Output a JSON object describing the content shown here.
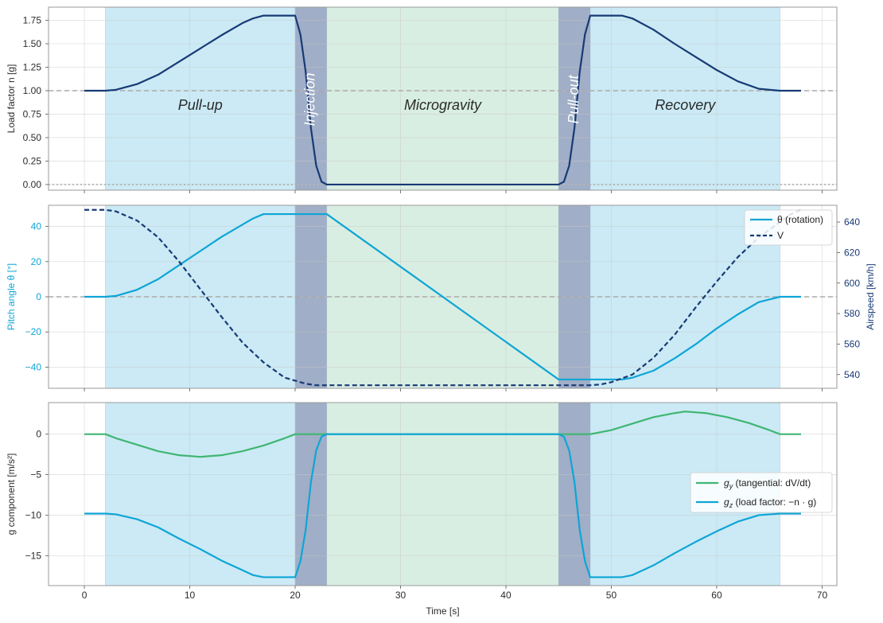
{
  "chart_data": [
    {
      "type": "line",
      "panel": "load-factor",
      "ylabel": "Load factor n [g]",
      "ylim": [
        -0.06,
        1.89
      ],
      "xlim": [
        -3.4,
        71.4
      ],
      "grid": true,
      "yticks": [
        0.0,
        0.25,
        0.5,
        0.75,
        1.0,
        1.25,
        1.5,
        1.75
      ],
      "ytick_labels": [
        "0.00",
        "0.25",
        "0.50",
        "0.75",
        "1.00",
        "1.25",
        "1.50",
        "1.75"
      ],
      "phases": [
        {
          "name": "Pull-up",
          "start": 2,
          "end": 20,
          "color": "#cbeaf5",
          "label_rotated": false
        },
        {
          "name": "Injection",
          "start": 20,
          "end": 23,
          "color": "#a0aec7",
          "label_rotated": true
        },
        {
          "name": "Microgravity",
          "start": 23,
          "end": 45,
          "color": "#d9eee2",
          "label_rotated": false
        },
        {
          "name": "Pull-out",
          "start": 45,
          "end": 48,
          "color": "#a0aec7",
          "label_rotated": true
        },
        {
          "name": "Recovery",
          "start": 48,
          "end": 66,
          "color": "#cbeaf5",
          "label_rotated": false
        }
      ],
      "reference_lines": [
        {
          "y": 1.0,
          "style": "dashed",
          "color": "#aaaaaa"
        },
        {
          "y": 0.0,
          "style": "dotted",
          "color": "#aaaaaa"
        }
      ],
      "series": [
        {
          "color": "#173a75",
          "axis": "left",
          "style": "solid",
          "points": [
            [
              0,
              1.0
            ],
            [
              2,
              1.0
            ],
            [
              3,
              1.01
            ],
            [
              5,
              1.07
            ],
            [
              7,
              1.17
            ],
            [
              9,
              1.31
            ],
            [
              11,
              1.45
            ],
            [
              13,
              1.59
            ],
            [
              15,
              1.72
            ],
            [
              16,
              1.77
            ],
            [
              17,
              1.8
            ],
            [
              20,
              1.8
            ],
            [
              20.5,
              1.6
            ],
            [
              21,
              1.2
            ],
            [
              21.5,
              0.6
            ],
            [
              22,
              0.2
            ],
            [
              22.5,
              0.03
            ],
            [
              23,
              0.0
            ],
            [
              45,
              0.0
            ],
            [
              45.5,
              0.03
            ],
            [
              46,
              0.2
            ],
            [
              46.5,
              0.6
            ],
            [
              47,
              1.2
            ],
            [
              47.5,
              1.6
            ],
            [
              48,
              1.8
            ],
            [
              51,
              1.8
            ],
            [
              52,
              1.77
            ],
            [
              54,
              1.65
            ],
            [
              56,
              1.5
            ],
            [
              58,
              1.36
            ],
            [
              60,
              1.22
            ],
            [
              62,
              1.1
            ],
            [
              64,
              1.02
            ],
            [
              66,
              1.0
            ],
            [
              68,
              1.0
            ]
          ]
        }
      ]
    },
    {
      "type": "line",
      "panel": "pitch-airspeed",
      "ylabel": "Pitch angle θ [°]",
      "ylabel_right": "Airspeed [km/h]",
      "ylim": [
        -52,
        52
      ],
      "ylim_right": [
        531,
        651
      ],
      "xlim": [
        -3.4,
        71.4
      ],
      "grid": true,
      "yticks": [
        -40,
        -20,
        0,
        20,
        40
      ],
      "ytick_labels": [
        "−40",
        "−20",
        "0",
        "20",
        "40"
      ],
      "yticks_right": [
        540,
        560,
        580,
        600,
        620,
        640
      ],
      "ytick_labels_right": [
        "540",
        "560",
        "580",
        "600",
        "620",
        "640"
      ],
      "reference_lines": [
        {
          "y": 0,
          "style": "dashed",
          "color": "#aaaaaa"
        }
      ],
      "legend": {
        "position": "top-right",
        "entries": [
          {
            "text": "θ (rotation)",
            "color": "#0ea5d6",
            "style": "solid"
          },
          {
            "text": "V",
            "color": "#173a75",
            "style": "dashed"
          }
        ]
      },
      "series": [
        {
          "name": "θ (rotation)",
          "color": "#0ea5d6",
          "axis": "left",
          "style": "solid",
          "points": [
            [
              0,
              0
            ],
            [
              2,
              0
            ],
            [
              3,
              0.5
            ],
            [
              5,
              4
            ],
            [
              7,
              10
            ],
            [
              9,
              18
            ],
            [
              11,
              26
            ],
            [
              13,
              34
            ],
            [
              15,
              41
            ],
            [
              16,
              44.5
            ],
            [
              17,
              47
            ],
            [
              23,
              47
            ],
            [
              45,
              -47
            ],
            [
              51,
              -47
            ],
            [
              52,
              -46
            ],
            [
              54,
              -42
            ],
            [
              56,
              -35
            ],
            [
              58,
              -27
            ],
            [
              60,
              -18
            ],
            [
              62,
              -10
            ],
            [
              64,
              -3
            ],
            [
              66,
              0
            ],
            [
              68,
              0
            ]
          ]
        },
        {
          "name": "V",
          "color": "#173a75",
          "axis": "right",
          "style": "dashed",
          "points": [
            [
              0,
              648
            ],
            [
              2,
              648
            ],
            [
              3,
              647
            ],
            [
              5,
              641
            ],
            [
              7,
              630
            ],
            [
              9,
              614
            ],
            [
              11,
              596
            ],
            [
              13,
              578
            ],
            [
              15,
              561
            ],
            [
              17,
              548
            ],
            [
              19,
              538
            ],
            [
              20,
              536
            ],
            [
              21,
              534
            ],
            [
              22,
              533
            ],
            [
              23,
              533
            ],
            [
              48,
              533
            ],
            [
              49,
              533.5
            ],
            [
              50,
              535
            ],
            [
              52,
              540
            ],
            [
              54,
              551
            ],
            [
              56,
              566
            ],
            [
              58,
              584
            ],
            [
              60,
              601
            ],
            [
              62,
              617
            ],
            [
              64,
              630
            ],
            [
              66,
              640
            ],
            [
              67,
              645
            ],
            [
              68,
              648
            ]
          ]
        }
      ]
    },
    {
      "type": "line",
      "panel": "g-components",
      "ylabel": "g component [m/s²]",
      "xlabel": "Time [s]",
      "ylim": [
        -18.7,
        3.9
      ],
      "xlim": [
        -3.4,
        71.4
      ],
      "grid": true,
      "yticks": [
        -15,
        -10,
        -5,
        0
      ],
      "ytick_labels": [
        "−15",
        "−10",
        "−5",
        "0"
      ],
      "xticks": [
        0,
        10,
        20,
        30,
        40,
        50,
        60,
        70
      ],
      "xtick_labels": [
        "0",
        "10",
        "20",
        "30",
        "40",
        "50",
        "60",
        "70"
      ],
      "legend": {
        "position": "center-right",
        "entries": [
          {
            "text": "g",
            "sub": "y",
            "rest": " (tangential: dV/dt)",
            "color": "#3fb672"
          },
          {
            "text": "g",
            "sub": "z",
            "rest": " (load factor: −n · g)",
            "color": "#0ea5d6"
          }
        ]
      },
      "series": [
        {
          "name": "gy (tangential: dV/dt)",
          "color": "#3fb672",
          "axis": "left",
          "style": "solid",
          "points": [
            [
              0,
              0
            ],
            [
              2,
              0
            ],
            [
              3,
              -0.5
            ],
            [
              5,
              -1.3
            ],
            [
              7,
              -2.1
            ],
            [
              9,
              -2.6
            ],
            [
              11,
              -2.8
            ],
            [
              13,
              -2.6
            ],
            [
              15,
              -2.1
            ],
            [
              17,
              -1.4
            ],
            [
              19,
              -0.5
            ],
            [
              20,
              0
            ],
            [
              48,
              0
            ],
            [
              50,
              0.5
            ],
            [
              52,
              1.3
            ],
            [
              54,
              2.1
            ],
            [
              56,
              2.6
            ],
            [
              57,
              2.8
            ],
            [
              59,
              2.6
            ],
            [
              61,
              2.1
            ],
            [
              63,
              1.4
            ],
            [
              65,
              0.5
            ],
            [
              66,
              0
            ],
            [
              68,
              0
            ]
          ]
        },
        {
          "name": "gz (load factor: −n · g)",
          "color": "#0ea5d6",
          "axis": "left",
          "style": "solid",
          "points": [
            [
              0,
              -9.81
            ],
            [
              2,
              -9.81
            ],
            [
              3,
              -9.9
            ],
            [
              5,
              -10.5
            ],
            [
              7,
              -11.5
            ],
            [
              9,
              -12.9
            ],
            [
              11,
              -14.2
            ],
            [
              13,
              -15.6
            ],
            [
              15,
              -16.8
            ],
            [
              16,
              -17.4
            ],
            [
              17,
              -17.66
            ],
            [
              20,
              -17.66
            ],
            [
              20.5,
              -15.7
            ],
            [
              21,
              -11.8
            ],
            [
              21.5,
              -5.9
            ],
            [
              22,
              -2.0
            ],
            [
              22.5,
              -0.3
            ],
            [
              23,
              0
            ],
            [
              45,
              0
            ],
            [
              45.5,
              -0.3
            ],
            [
              46,
              -2.0
            ],
            [
              46.5,
              -5.9
            ],
            [
              47,
              -11.8
            ],
            [
              47.5,
              -15.7
            ],
            [
              48,
              -17.66
            ],
            [
              51,
              -17.66
            ],
            [
              52,
              -17.4
            ],
            [
              54,
              -16.2
            ],
            [
              56,
              -14.7
            ],
            [
              58,
              -13.3
            ],
            [
              60,
              -12.0
            ],
            [
              62,
              -10.8
            ],
            [
              64,
              -10.0
            ],
            [
              66,
              -9.81
            ],
            [
              68,
              -9.81
            ]
          ]
        }
      ]
    }
  ]
}
